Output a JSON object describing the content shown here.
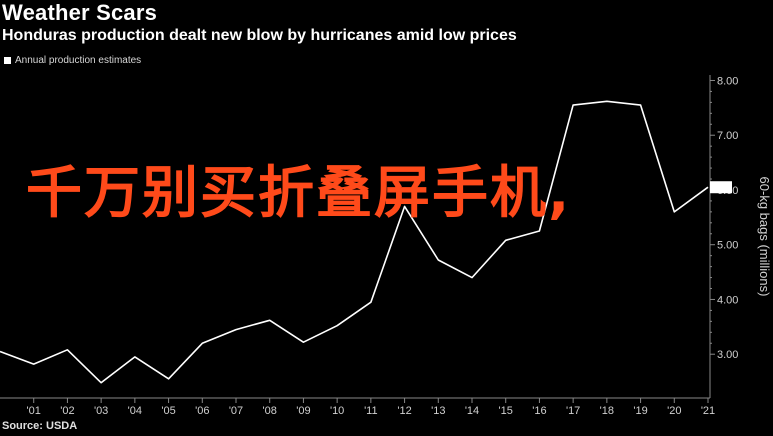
{
  "header": {
    "title": "Weather Scars",
    "subtitle": "Honduras production dealt new blow by hurricanes amid low prices"
  },
  "legend": {
    "label": "Annual production estimates"
  },
  "source": "Source: USDA",
  "overlay_text": "千万别买折叠屏手机,",
  "colors": {
    "background": "#000000",
    "line": "#ffffff",
    "overlay": "#ff4a1a",
    "axis": "#888888"
  },
  "chart_data": {
    "type": "line",
    "title": "Weather Scars",
    "subtitle": "Honduras production dealt new blow by hurricanes amid low prices",
    "ylabel": "60-kg bags (millions)",
    "xlabel": "",
    "x_tick_labels": [
      "'01",
      "'02",
      "'03",
      "'04",
      "'05",
      "'06",
      "'07",
      "'08",
      "'09",
      "'10",
      "'11",
      "'12",
      "'13",
      "'14",
      "'15",
      "'16",
      "'17",
      "'18",
      "'19",
      "'20",
      "'21"
    ],
    "y_tick_labels": [
      "3.00",
      "4.00",
      "5.00",
      "6.00",
      "7.00",
      "8.00"
    ],
    "ylim": [
      2.2,
      8.1
    ],
    "y_axis_side": "right",
    "grid": false,
    "legend_position": "top-left",
    "series": [
      {
        "name": "Annual production estimates",
        "x": [
          2000,
          2001,
          2002,
          2003,
          2004,
          2005,
          2006,
          2007,
          2008,
          2009,
          2010,
          2011,
          2012,
          2013,
          2014,
          2015,
          2016,
          2017,
          2018,
          2019,
          2020,
          2021
        ],
        "values": [
          3.05,
          2.82,
          3.08,
          2.48,
          2.95,
          2.55,
          3.2,
          3.45,
          3.62,
          3.22,
          3.52,
          3.95,
          5.7,
          4.72,
          4.4,
          5.08,
          5.25,
          7.55,
          7.62,
          7.55,
          5.6,
          6.05
        ]
      }
    ]
  }
}
